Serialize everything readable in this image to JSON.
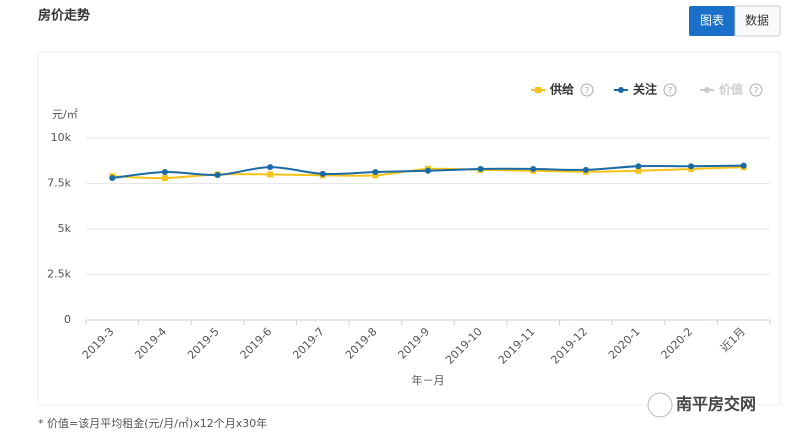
{
  "header": {
    "title": "房价走势",
    "buttons": [
      "图表",
      "数据"
    ]
  },
  "chart_data": {
    "type": "line",
    "y_unit": "元/㎡",
    "x_label": "年－月",
    "categories": [
      "2019-3",
      "2019-4",
      "2019-5",
      "2019-6",
      "2019-7",
      "2019-8",
      "2019-9",
      "2019-10",
      "2019-11",
      "2019-12",
      "2020-1",
      "2020-2",
      "近1月"
    ],
    "series": [
      {
        "name": "供给",
        "color": "#f5c218",
        "marker": "square",
        "visible": true,
        "values": [
          7900,
          7800,
          8000,
          8000,
          7950,
          7950,
          8300,
          8250,
          8200,
          8150,
          8200,
          8300,
          8400
        ]
      },
      {
        "name": "关注",
        "color": "#1a6aa6",
        "marker": "circle",
        "visible": true,
        "values": [
          7800,
          8130,
          7970,
          8400,
          8030,
          8130,
          8200,
          8300,
          8300,
          8250,
          8450,
          8450,
          8480
        ]
      },
      {
        "name": "价值",
        "color": "#cccccc",
        "marker": "circle",
        "visible": false,
        "values": [
          null,
          null,
          null,
          null,
          null,
          null,
          null,
          null,
          null,
          null,
          null,
          null,
          null
        ]
      }
    ],
    "ylim": [
      0,
      10000
    ],
    "yticks": [
      0,
      {
        "value": 2500,
        "label": "2.5k"
      },
      {
        "value": 5000,
        "label": "5k"
      },
      {
        "value": 7500,
        "label": "7.5k"
      },
      {
        "value": 10000,
        "label": "10k"
      }
    ],
    "grid": true,
    "legend": "top-right"
  },
  "footnote": "* 价值=该月平均租金(元/月/㎡)x12个月x30年",
  "watermark": "南平房交网"
}
